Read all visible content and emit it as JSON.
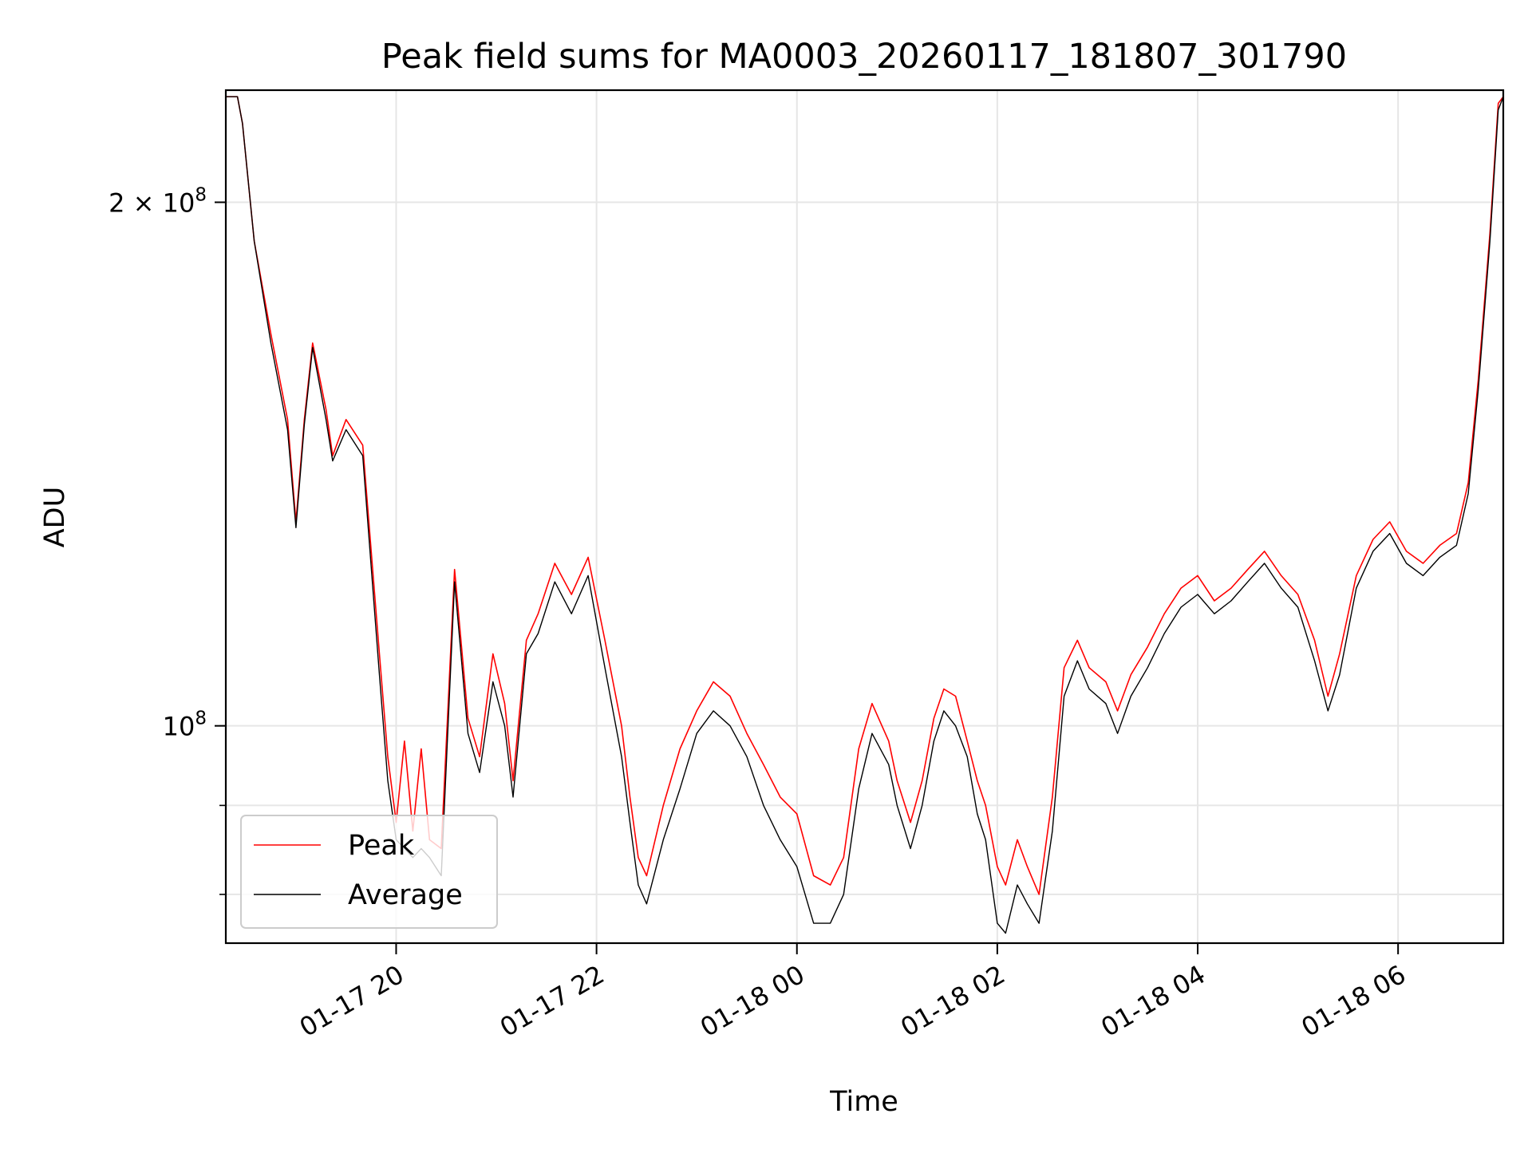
{
  "chart_data": {
    "type": "line",
    "title": "Peak field sums for MA0003_20260117_181807_301790",
    "xlabel": "Time",
    "ylabel": "ADU",
    "x_range": [
      "2026-01-17 18:18",
      "2026-01-18 07:03"
    ],
    "ylim": [
      75000000,
      232000000
    ],
    "yscale": "log",
    "grid": true,
    "legend_position": "lower-left",
    "x_ticks": [
      {
        "value": "2026-01-17 20:00",
        "label": "01-17 20"
      },
      {
        "value": "2026-01-17 22:00",
        "label": "01-17 22"
      },
      {
        "value": "2026-01-18 00:00",
        "label": "01-18 00"
      },
      {
        "value": "2026-01-18 02:00",
        "label": "01-18 02"
      },
      {
        "value": "2026-01-18 04:00",
        "label": "01-18 04"
      },
      {
        "value": "2026-01-18 06:00",
        "label": "01-18 06"
      }
    ],
    "y_major_ticks": [
      {
        "value": 100000000,
        "label_base": "10",
        "label_exp": "8"
      },
      {
        "value": 200000000,
        "label_base": "2 × 10",
        "label_exp": "8"
      }
    ],
    "y_minor_ticks": [
      80000000,
      90000000,
      100000000,
      200000000
    ],
    "series": [
      {
        "name": "Peak",
        "color": "#ff0000",
        "points": [
          [
            "2026-01-17 18:18",
            230000000
          ],
          [
            "2026-01-17 18:25",
            230000000
          ],
          [
            "2026-01-17 18:28",
            222000000
          ],
          [
            "2026-01-17 18:35",
            190000000
          ],
          [
            "2026-01-17 18:45",
            168000000
          ],
          [
            "2026-01-17 18:55",
            150000000
          ],
          [
            "2026-01-17 19:00",
            131000000
          ],
          [
            "2026-01-17 19:05",
            150000000
          ],
          [
            "2026-01-17 19:10",
            166000000
          ],
          [
            "2026-01-17 19:18",
            152000000
          ],
          [
            "2026-01-17 19:22",
            143000000
          ],
          [
            "2026-01-17 19:30",
            150000000
          ],
          [
            "2026-01-17 19:40",
            145000000
          ],
          [
            "2026-01-17 19:50",
            110000000
          ],
          [
            "2026-01-17 19:55",
            96000000
          ],
          [
            "2026-01-17 20:00",
            88000000
          ],
          [
            "2026-01-17 20:05",
            98000000
          ],
          [
            "2026-01-17 20:10",
            87000000
          ],
          [
            "2026-01-17 20:15",
            97000000
          ],
          [
            "2026-01-17 20:20",
            86000000
          ],
          [
            "2026-01-17 20:27",
            85000000
          ],
          [
            "2026-01-17 20:35",
            123000000
          ],
          [
            "2026-01-17 20:43",
            101000000
          ],
          [
            "2026-01-17 20:50",
            96000000
          ],
          [
            "2026-01-17 20:58",
            110000000
          ],
          [
            "2026-01-17 21:05",
            103000000
          ],
          [
            "2026-01-17 21:10",
            93000000
          ],
          [
            "2026-01-17 21:18",
            112000000
          ],
          [
            "2026-01-17 21:25",
            116000000
          ],
          [
            "2026-01-17 21:35",
            124000000
          ],
          [
            "2026-01-17 21:45",
            119000000
          ],
          [
            "2026-01-17 21:55",
            125000000
          ],
          [
            "2026-01-17 22:05",
            112000000
          ],
          [
            "2026-01-17 22:15",
            100000000
          ],
          [
            "2026-01-17 22:20",
            91000000
          ],
          [
            "2026-01-17 22:25",
            84000000
          ],
          [
            "2026-01-17 22:30",
            82000000
          ],
          [
            "2026-01-17 22:40",
            90000000
          ],
          [
            "2026-01-17 22:50",
            97000000
          ],
          [
            "2026-01-17 23:00",
            102000000
          ],
          [
            "2026-01-17 23:10",
            106000000
          ],
          [
            "2026-01-17 23:20",
            104000000
          ],
          [
            "2026-01-17 23:30",
            99000000
          ],
          [
            "2026-01-17 23:40",
            95000000
          ],
          [
            "2026-01-17 23:50",
            91000000
          ],
          [
            "2026-01-18 00:00",
            89000000
          ],
          [
            "2026-01-18 00:10",
            82000000
          ],
          [
            "2026-01-18 00:20",
            81000000
          ],
          [
            "2026-01-18 00:28",
            84000000
          ],
          [
            "2026-01-18 00:37",
            97000000
          ],
          [
            "2026-01-18 00:45",
            103000000
          ],
          [
            "2026-01-18 00:55",
            98000000
          ],
          [
            "2026-01-18 01:00",
            93000000
          ],
          [
            "2026-01-18 01:08",
            88000000
          ],
          [
            "2026-01-18 01:15",
            93000000
          ],
          [
            "2026-01-18 01:22",
            101000000
          ],
          [
            "2026-01-18 01:28",
            105000000
          ],
          [
            "2026-01-18 01:35",
            104000000
          ],
          [
            "2026-01-18 01:42",
            98000000
          ],
          [
            "2026-01-18 01:48",
            93000000
          ],
          [
            "2026-01-18 01:53",
            90000000
          ],
          [
            "2026-01-18 02:00",
            83000000
          ],
          [
            "2026-01-18 02:05",
            81000000
          ],
          [
            "2026-01-18 02:12",
            86000000
          ],
          [
            "2026-01-18 02:18",
            83000000
          ],
          [
            "2026-01-18 02:25",
            80000000
          ],
          [
            "2026-01-18 02:33",
            91000000
          ],
          [
            "2026-01-18 02:40",
            108000000
          ],
          [
            "2026-01-18 02:48",
            112000000
          ],
          [
            "2026-01-18 02:55",
            108000000
          ],
          [
            "2026-01-18 03:05",
            106000000
          ],
          [
            "2026-01-18 03:12",
            102000000
          ],
          [
            "2026-01-18 03:20",
            107000000
          ],
          [
            "2026-01-18 03:30",
            111000000
          ],
          [
            "2026-01-18 03:40",
            116000000
          ],
          [
            "2026-01-18 03:50",
            120000000
          ],
          [
            "2026-01-18 04:00",
            122000000
          ],
          [
            "2026-01-18 04:10",
            118000000
          ],
          [
            "2026-01-18 04:20",
            120000000
          ],
          [
            "2026-01-18 04:30",
            123000000
          ],
          [
            "2026-01-18 04:40",
            126000000
          ],
          [
            "2026-01-18 04:50",
            122000000
          ],
          [
            "2026-01-18 05:00",
            119000000
          ],
          [
            "2026-01-18 05:10",
            112000000
          ],
          [
            "2026-01-18 05:18",
            104000000
          ],
          [
            "2026-01-18 05:25",
            110000000
          ],
          [
            "2026-01-18 05:35",
            122000000
          ],
          [
            "2026-01-18 05:45",
            128000000
          ],
          [
            "2026-01-18 05:55",
            131000000
          ],
          [
            "2026-01-18 06:05",
            126000000
          ],
          [
            "2026-01-18 06:15",
            124000000
          ],
          [
            "2026-01-18 06:25",
            127000000
          ],
          [
            "2026-01-18 06:35",
            129000000
          ],
          [
            "2026-01-18 06:42",
            138000000
          ],
          [
            "2026-01-18 06:48",
            158000000
          ],
          [
            "2026-01-18 06:55",
            192000000
          ],
          [
            "2026-01-18 07:00",
            228000000
          ],
          [
            "2026-01-18 07:03",
            230000000
          ]
        ]
      },
      {
        "name": "Average",
        "color": "#000000",
        "points": [
          [
            "2026-01-17 18:18",
            230000000
          ],
          [
            "2026-01-17 18:25",
            230000000
          ],
          [
            "2026-01-17 18:28",
            222000000
          ],
          [
            "2026-01-17 18:35",
            190000000
          ],
          [
            "2026-01-17 18:45",
            166000000
          ],
          [
            "2026-01-17 18:55",
            148000000
          ],
          [
            "2026-01-17 19:00",
            130000000
          ],
          [
            "2026-01-17 19:05",
            149000000
          ],
          [
            "2026-01-17 19:10",
            165000000
          ],
          [
            "2026-01-17 19:18",
            150000000
          ],
          [
            "2026-01-17 19:22",
            142000000
          ],
          [
            "2026-01-17 19:30",
            148000000
          ],
          [
            "2026-01-17 19:40",
            143000000
          ],
          [
            "2026-01-17 19:50",
            107000000
          ],
          [
            "2026-01-17 19:55",
            93000000
          ],
          [
            "2026-01-17 20:00",
            86000000
          ],
          [
            "2026-01-17 20:05",
            85000000
          ],
          [
            "2026-01-17 20:10",
            84000000
          ],
          [
            "2026-01-17 20:15",
            85000000
          ],
          [
            "2026-01-17 20:20",
            84000000
          ],
          [
            "2026-01-17 20:27",
            82000000
          ],
          [
            "2026-01-17 20:35",
            121000000
          ],
          [
            "2026-01-17 20:43",
            99000000
          ],
          [
            "2026-01-17 20:50",
            94000000
          ],
          [
            "2026-01-17 20:58",
            106000000
          ],
          [
            "2026-01-17 21:05",
            100000000
          ],
          [
            "2026-01-17 21:10",
            91000000
          ],
          [
            "2026-01-17 21:18",
            110000000
          ],
          [
            "2026-01-17 21:25",
            113000000
          ],
          [
            "2026-01-17 21:35",
            121000000
          ],
          [
            "2026-01-17 21:45",
            116000000
          ],
          [
            "2026-01-17 21:55",
            122000000
          ],
          [
            "2026-01-17 22:05",
            108000000
          ],
          [
            "2026-01-17 22:15",
            96000000
          ],
          [
            "2026-01-17 22:20",
            88000000
          ],
          [
            "2026-01-17 22:25",
            81000000
          ],
          [
            "2026-01-17 22:30",
            79000000
          ],
          [
            "2026-01-17 22:40",
            86000000
          ],
          [
            "2026-01-17 22:50",
            92000000
          ],
          [
            "2026-01-17 23:00",
            99000000
          ],
          [
            "2026-01-17 23:10",
            102000000
          ],
          [
            "2026-01-17 23:20",
            100000000
          ],
          [
            "2026-01-17 23:30",
            96000000
          ],
          [
            "2026-01-17 23:40",
            90000000
          ],
          [
            "2026-01-17 23:50",
            86000000
          ],
          [
            "2026-01-18 00:00",
            83000000
          ],
          [
            "2026-01-18 00:10",
            77000000
          ],
          [
            "2026-01-18 00:20",
            77000000
          ],
          [
            "2026-01-18 00:28",
            80000000
          ],
          [
            "2026-01-18 00:37",
            92000000
          ],
          [
            "2026-01-18 00:45",
            99000000
          ],
          [
            "2026-01-18 00:55",
            95000000
          ],
          [
            "2026-01-18 01:00",
            90000000
          ],
          [
            "2026-01-18 01:08",
            85000000
          ],
          [
            "2026-01-18 01:15",
            90000000
          ],
          [
            "2026-01-18 01:22",
            98000000
          ],
          [
            "2026-01-18 01:28",
            102000000
          ],
          [
            "2026-01-18 01:35",
            100000000
          ],
          [
            "2026-01-18 01:42",
            96000000
          ],
          [
            "2026-01-18 01:48",
            89000000
          ],
          [
            "2026-01-18 01:53",
            86000000
          ],
          [
            "2026-01-18 02:00",
            77000000
          ],
          [
            "2026-01-18 02:05",
            76000000
          ],
          [
            "2026-01-18 02:12",
            81000000
          ],
          [
            "2026-01-18 02:18",
            79000000
          ],
          [
            "2026-01-18 02:25",
            77000000
          ],
          [
            "2026-01-18 02:33",
            87000000
          ],
          [
            "2026-01-18 02:40",
            104000000
          ],
          [
            "2026-01-18 02:48",
            109000000
          ],
          [
            "2026-01-18 02:55",
            105000000
          ],
          [
            "2026-01-18 03:05",
            103000000
          ],
          [
            "2026-01-18 03:12",
            99000000
          ],
          [
            "2026-01-18 03:20",
            104000000
          ],
          [
            "2026-01-18 03:30",
            108000000
          ],
          [
            "2026-01-18 03:40",
            113000000
          ],
          [
            "2026-01-18 03:50",
            117000000
          ],
          [
            "2026-01-18 04:00",
            119000000
          ],
          [
            "2026-01-18 04:10",
            116000000
          ],
          [
            "2026-01-18 04:20",
            118000000
          ],
          [
            "2026-01-18 04:30",
            121000000
          ],
          [
            "2026-01-18 04:40",
            124000000
          ],
          [
            "2026-01-18 04:50",
            120000000
          ],
          [
            "2026-01-18 05:00",
            117000000
          ],
          [
            "2026-01-18 05:10",
            109000000
          ],
          [
            "2026-01-18 05:18",
            102000000
          ],
          [
            "2026-01-18 05:25",
            107000000
          ],
          [
            "2026-01-18 05:35",
            120000000
          ],
          [
            "2026-01-18 05:45",
            126000000
          ],
          [
            "2026-01-18 05:55",
            129000000
          ],
          [
            "2026-01-18 06:05",
            124000000
          ],
          [
            "2026-01-18 06:15",
            122000000
          ],
          [
            "2026-01-18 06:25",
            125000000
          ],
          [
            "2026-01-18 06:35",
            127000000
          ],
          [
            "2026-01-18 06:42",
            136000000
          ],
          [
            "2026-01-18 06:48",
            156000000
          ],
          [
            "2026-01-18 06:55",
            190000000
          ],
          [
            "2026-01-18 07:00",
            226000000
          ],
          [
            "2026-01-18 07:03",
            230000000
          ]
        ]
      }
    ]
  }
}
